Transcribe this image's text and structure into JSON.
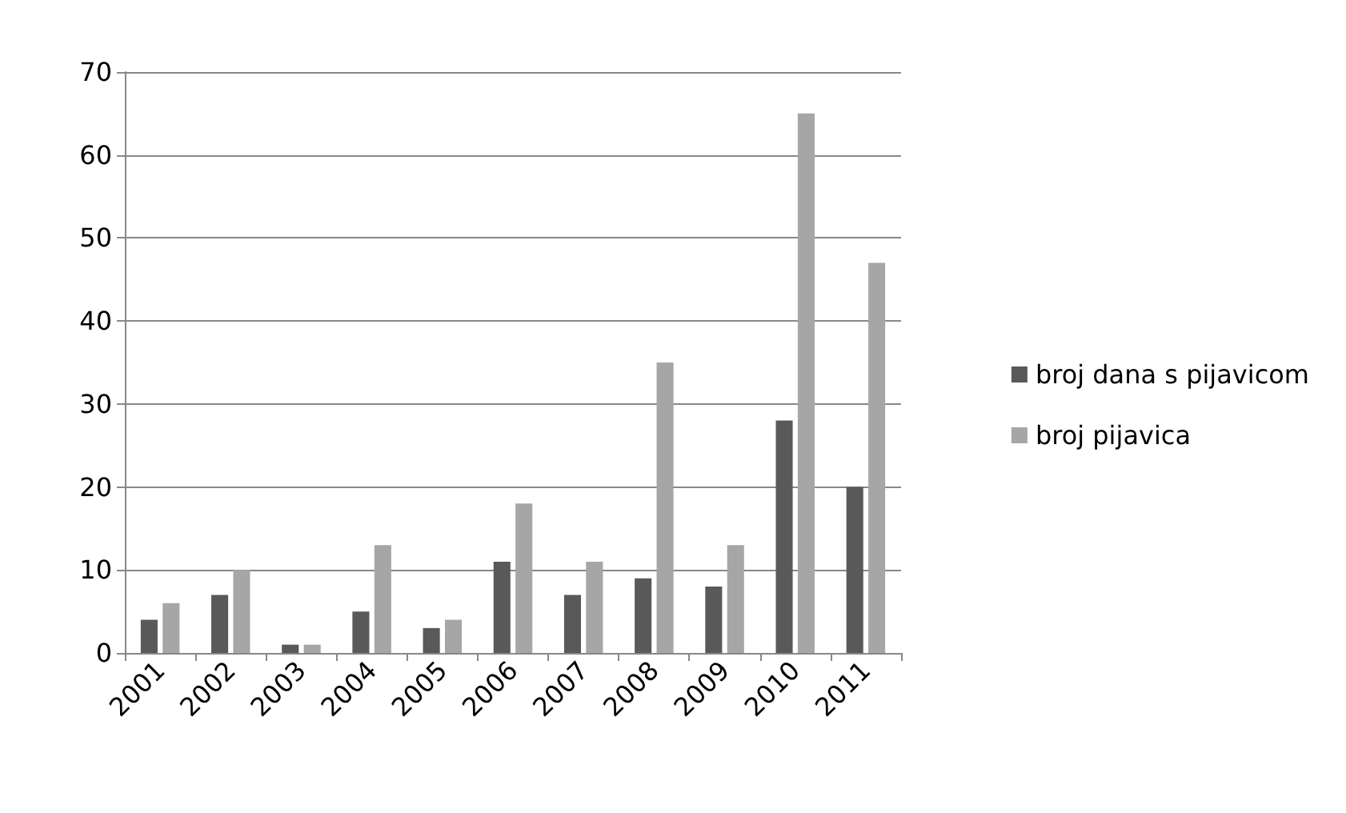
{
  "chart_data": {
    "type": "bar",
    "categories": [
      "2001",
      "2002",
      "2003",
      "2004",
      "2005",
      "2006",
      "2007",
      "2008",
      "2009",
      "2010",
      "2011"
    ],
    "series": [
      {
        "name": "broj dana s pijavicom",
        "color": "#595959",
        "values": [
          4,
          7,
          1,
          5,
          3,
          11,
          7,
          9,
          8,
          28,
          20
        ]
      },
      {
        "name": "broj pijavica",
        "color": "#a6a6a6",
        "values": [
          6,
          10,
          1,
          13,
          4,
          18,
          11,
          35,
          13,
          65,
          47
        ]
      }
    ],
    "ylim": [
      0,
      70
    ],
    "yticks": [
      0,
      10,
      20,
      30,
      40,
      50,
      60,
      70
    ],
    "grid": "y",
    "legend": "right"
  }
}
